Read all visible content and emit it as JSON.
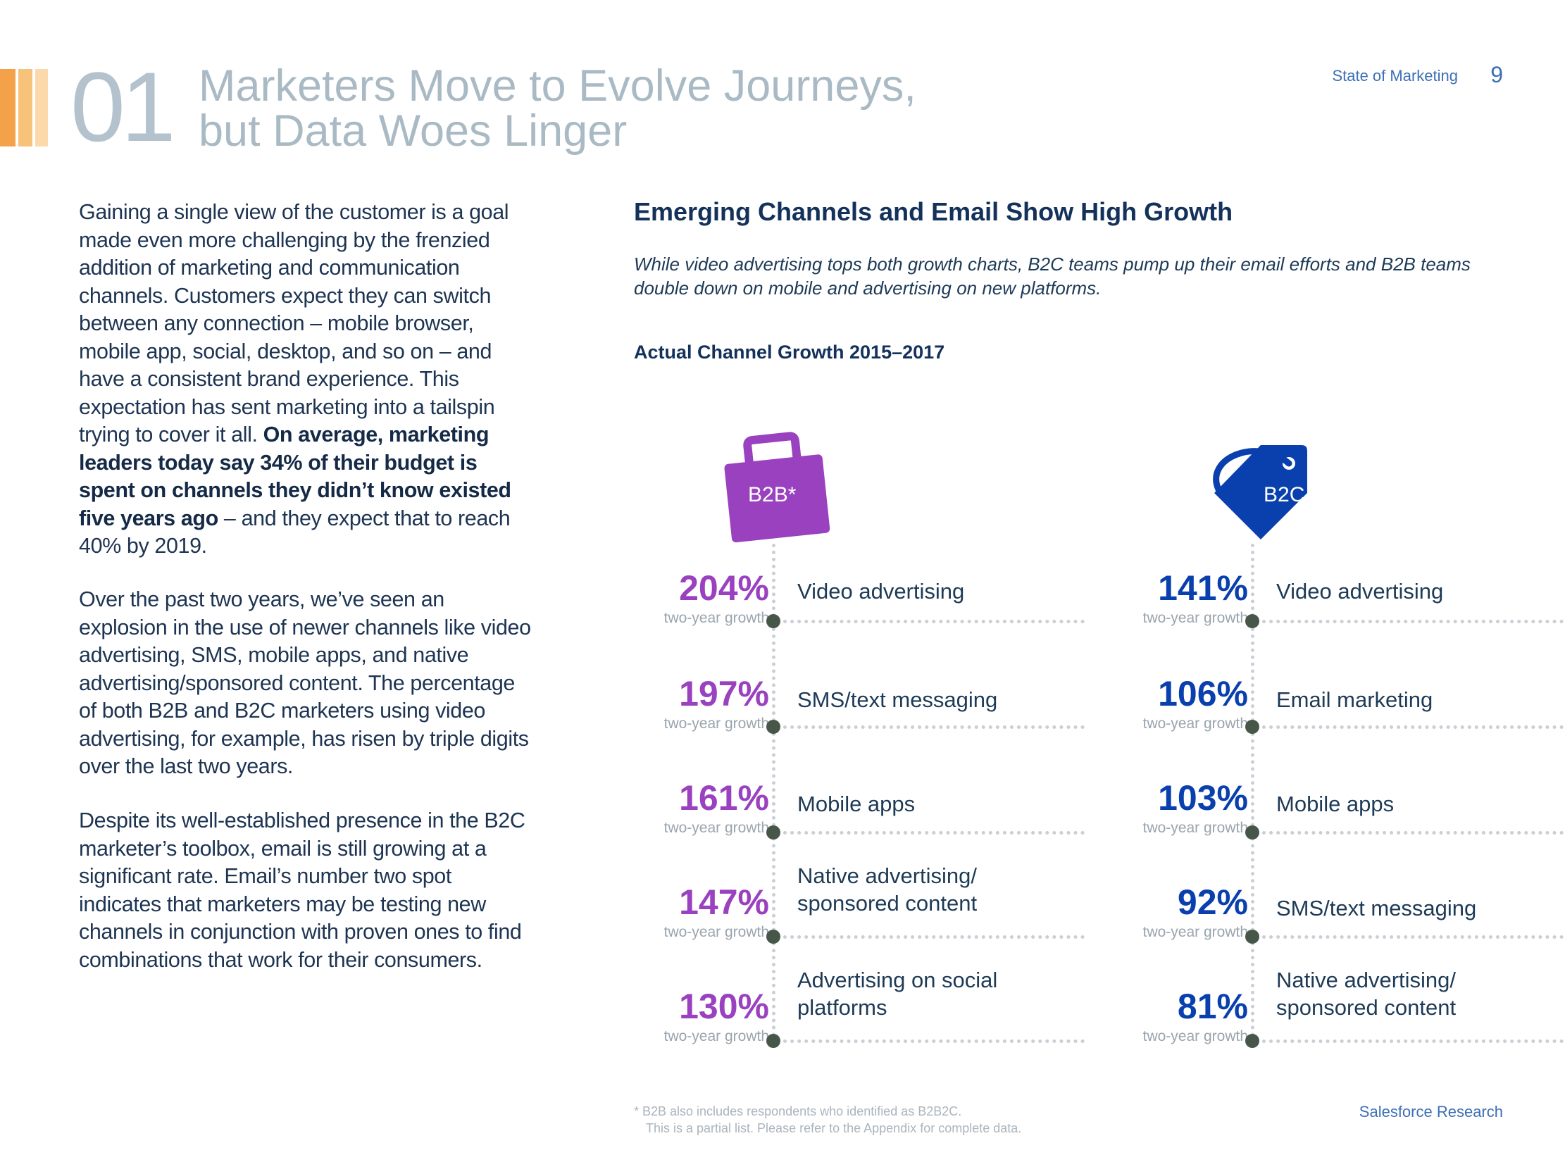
{
  "header": {
    "section_number": "01",
    "title_line1": "Marketers Move to Evolve Journeys,",
    "title_line2": "but Data Woes Linger",
    "running_head": "State of Marketing",
    "page_number": "9",
    "stripe_colors": [
      "#f3a24a",
      "#f7c27a",
      "#fbd9aa"
    ]
  },
  "body": {
    "p1_a": "Gaining a single view of the customer is a goal made even more challenging by the frenzied addition of marketing and communication channels. Customers expect they can switch between any connection – mobile browser, mobile app, social, desktop, and so on – and have a consistent brand experience. This expectation has sent marketing into a tailspin trying to cover it all. ",
    "p1_bold": "On average, marketing leaders today say 34% of their budget is spent on channels they didn’t know existed five years ago",
    "p1_b": " – and they expect that to reach 40% by 2019.",
    "p2": "Over the past two years, we’ve seen an explosion in the use of newer channels like video advertising, SMS, mobile apps, and native advertising/sponsored content. The percentage of both B2B and B2C marketers using video advertising, for example, has risen by triple digits over the last two years.",
    "p3": "Despite its well-established presence in the B2C marketer’s toolbox, email is still growing at a significant rate. Email’s number two spot indicates that marketers may be testing new channels in conjunction with proven ones to find combinations that work for their consumers."
  },
  "section": {
    "heading": "Emerging Channels and Email Show High Growth",
    "description": "While video advertising tops both growth charts, B2C teams pump up their email efforts and B2B teams double down on mobile and advertising on new platforms.",
    "chart_title": "Actual Channel Growth 2015–2017"
  },
  "b2b": {
    "label": "B2B*",
    "icon": "briefcase-icon",
    "color": "#9a41c0",
    "rows": [
      {
        "pct": "204%",
        "sub": "two-year growth",
        "label": "Video advertising"
      },
      {
        "pct": "197%",
        "sub": "two-year growth",
        "label": "SMS/text messaging"
      },
      {
        "pct": "161%",
        "sub": "two-year growth",
        "label": "Mobile apps"
      },
      {
        "pct": "147%",
        "sub": "two-year growth",
        "label": "Native advertising/ sponsored content"
      },
      {
        "pct": "130%",
        "sub": "two-year growth",
        "label": "Advertising on social platforms"
      }
    ]
  },
  "b2c": {
    "label": "B2C",
    "icon": "price-tag-icon",
    "color": "#0a3fae",
    "rows": [
      {
        "pct": "141%",
        "sub": "two-year growth",
        "label": "Video advertising"
      },
      {
        "pct": "106%",
        "sub": "two-year growth",
        "label": "Email marketing"
      },
      {
        "pct": "103%",
        "sub": "two-year growth",
        "label": "Mobile apps"
      },
      {
        "pct": "92%",
        "sub": "two-year growth",
        "label": "SMS/text messaging"
      },
      {
        "pct": "81%",
        "sub": "two-year growth",
        "label": "Native advertising/ sponsored content"
      }
    ]
  },
  "footer": {
    "note_line1": "*  B2B also includes respondents who identified as B2B2C.",
    "note_line2": "This is a partial list. Please refer to the Appendix for complete data.",
    "brand": "Salesforce Research"
  }
}
